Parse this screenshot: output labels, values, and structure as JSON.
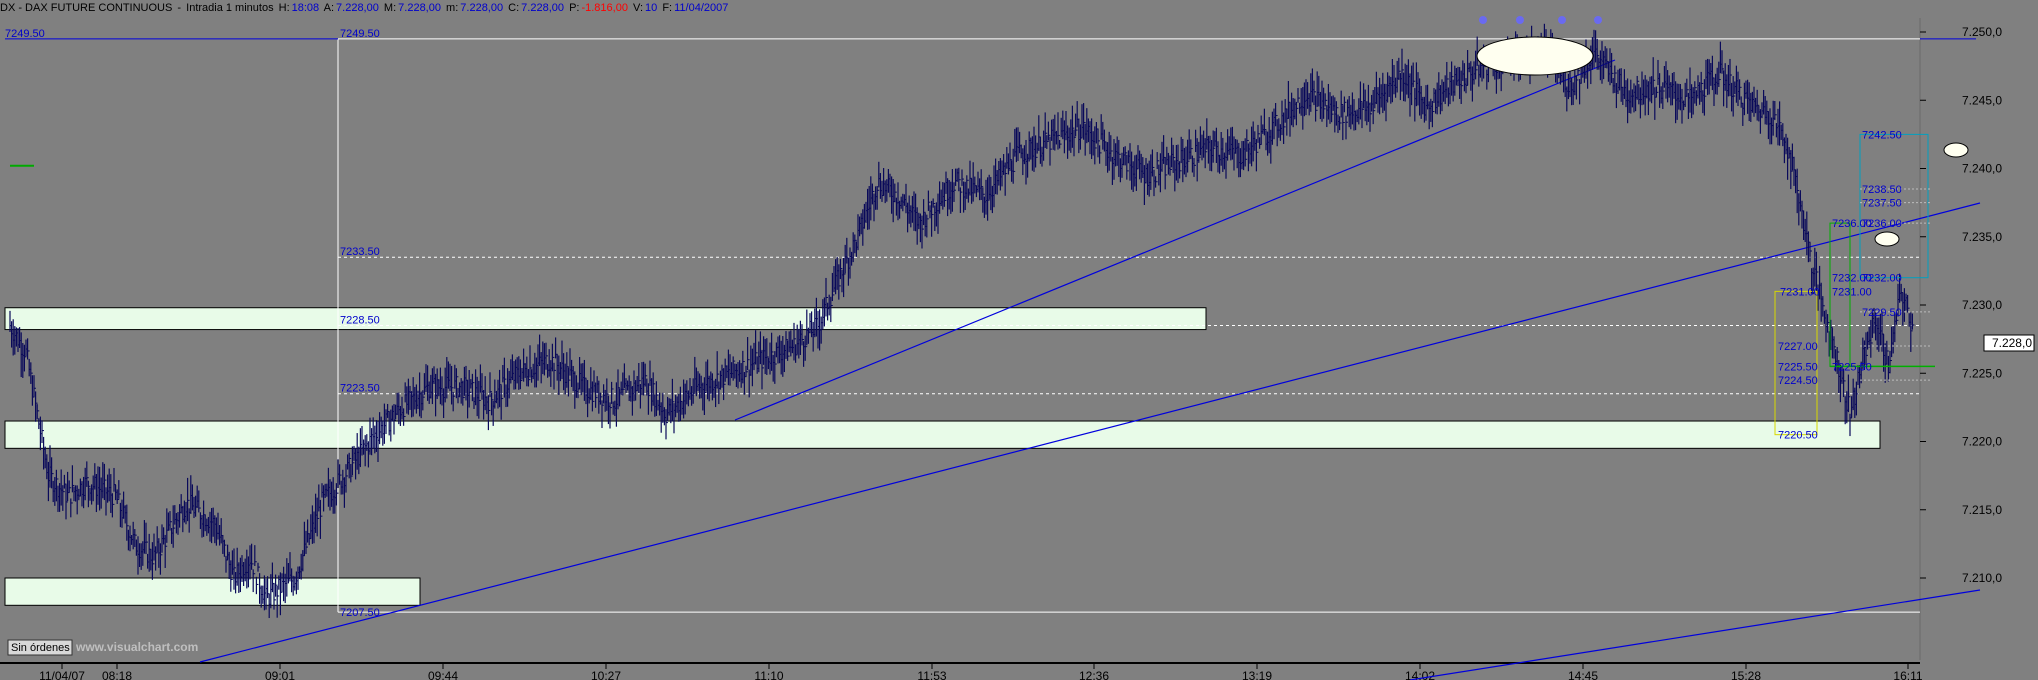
{
  "header": {
    "symbol": "DX - DAX FUTURE CONTINUOUS",
    "interval": "Intradia 1 minutos",
    "h_label": "H:",
    "h_value": "18:08",
    "a_label": "A:",
    "a_value": "7.228,00",
    "m_label": "M:",
    "m_value": "7.228,00",
    "mi_label": "m:",
    "mi_value": "7.228,00",
    "c_label": "C:",
    "c_value": "7.228,00",
    "p_label": "P:",
    "p_value": "-1.816,00",
    "v_label": "V:",
    "v_value": "10",
    "f_label": "F:",
    "f_value": "11/04/2007"
  },
  "watermark": "www.visualchart.com",
  "orders_button": "Sin órdenes",
  "colors": {
    "background": "#808080",
    "bars": "#0a0a5a",
    "trendline": "#0000dd",
    "zone_fill": "#e8fbe8",
    "level_lines": "#ffffff",
    "last_price_box": "#ffffff"
  },
  "chart_data": {
    "type": "ohlc",
    "interval": "1 minute",
    "date": "11/04/07",
    "y_ticks": [
      "7.250,0",
      "7.245,0",
      "7.240,0",
      "7.235,0",
      "7.230,0",
      "7.225,0",
      "7.220,0",
      "7.215,0",
      "7.210,0"
    ],
    "y_tick_values": [
      7250,
      7245,
      7240,
      7235,
      7230,
      7225,
      7220,
      7215,
      7210
    ],
    "x_ticks": [
      "11/04/07",
      "08:18",
      "09:01",
      "09:44",
      "10:27",
      "11:10",
      "11:53",
      "12:36",
      "13:19",
      "14:02",
      "14:45",
      "15:28",
      "16:11"
    ],
    "ylim": [
      7205.5,
      7251.4
    ],
    "last_price": "7.228,0",
    "level_labels": [
      {
        "text": "7249.50",
        "value": 7249.5
      },
      {
        "text": "7249.50",
        "value": 7249.5
      },
      {
        "text": "7233.50",
        "value": 7233.5
      },
      {
        "text": "7228.50",
        "value": 7228.5
      },
      {
        "text": "7223.50",
        "value": 7223.5
      },
      {
        "text": "7207.50",
        "value": 7207.5
      }
    ],
    "zones": [
      {
        "low": 7228.2,
        "high": 7229.8
      },
      {
        "low": 7219.5,
        "high": 7221.5
      },
      {
        "low": 7208.0,
        "high": 7210.0
      }
    ],
    "projection_labels": [
      {
        "text": "7242.50",
        "value": 7242.5
      },
      {
        "text": "7238.50",
        "value": 7238.5
      },
      {
        "text": "7237.50",
        "value": 7237.5
      },
      {
        "text": "7236.00",
        "value": 7236.0
      },
      {
        "text": "7236.00",
        "value": 7236.0
      },
      {
        "text": "7232.00",
        "value": 7232.0
      },
      {
        "text": "7232.00",
        "value": 7232.0
      },
      {
        "text": "7231.00",
        "value": 7231.0
      },
      {
        "text": "7231.00",
        "value": 7231.0
      },
      {
        "text": "7229.50",
        "value": 7229.5
      },
      {
        "text": "7227.00",
        "value": 7227.0
      },
      {
        "text": "7225.50",
        "value": 7225.5
      },
      {
        "text": "7225.50",
        "value": 7225.5
      },
      {
        "text": "7224.50",
        "value": 7224.5
      },
      {
        "text": "7220.50",
        "value": 7220.5
      }
    ],
    "price_path": [
      [
        0,
        7228.5
      ],
      [
        10,
        7226.5
      ],
      [
        24,
        7217.5
      ],
      [
        36,
        7216.0
      ],
      [
        48,
        7217.0
      ],
      [
        66,
        7216.0
      ],
      [
        78,
        7212.5
      ],
      [
        90,
        7211.5
      ],
      [
        110,
        7215.5
      ],
      [
        128,
        7214.0
      ],
      [
        140,
        7210.0
      ],
      [
        150,
        7211.5
      ],
      [
        160,
        7208.5
      ],
      [
        178,
        7210.0
      ],
      [
        195,
        7215.5
      ],
      [
        212,
        7218.0
      ],
      [
        228,
        7220.5
      ],
      [
        245,
        7222.5
      ],
      [
        262,
        7224.0
      ],
      [
        282,
        7224.0
      ],
      [
        300,
        7223.0
      ],
      [
        318,
        7225.0
      ],
      [
        338,
        7226.0
      ],
      [
        358,
        7224.0
      ],
      [
        378,
        7223.0
      ],
      [
        397,
        7224.5
      ],
      [
        410,
        7222.0
      ],
      [
        430,
        7224.0
      ],
      [
        450,
        7225.0
      ],
      [
        470,
        7226.0
      ],
      [
        490,
        7227.0
      ],
      [
        505,
        7228.5
      ],
      [
        518,
        7232.0
      ],
      [
        530,
        7235.0
      ],
      [
        542,
        7239.0
      ],
      [
        555,
        7238.0
      ],
      [
        568,
        7236.0
      ],
      [
        590,
        7239.0
      ],
      [
        610,
        7238.0
      ],
      [
        630,
        7241.0
      ],
      [
        650,
        7242.0
      ],
      [
        670,
        7243.0
      ],
      [
        690,
        7241.0
      ],
      [
        710,
        7239.5
      ],
      [
        730,
        7240.5
      ],
      [
        750,
        7241.5
      ],
      [
        770,
        7241.0
      ],
      [
        790,
        7243.0
      ],
      [
        810,
        7245.5
      ],
      [
        830,
        7244.0
      ],
      [
        850,
        7244.5
      ],
      [
        870,
        7247.0
      ],
      [
        885,
        7244.5
      ],
      [
        900,
        7246.0
      ],
      [
        920,
        7247.5
      ],
      [
        940,
        7248.0
      ],
      [
        960,
        7248.5
      ],
      [
        975,
        7246.0
      ],
      [
        990,
        7248.5
      ],
      [
        1010,
        7245.5
      ],
      [
        1030,
        7246.0
      ],
      [
        1050,
        7245.0
      ],
      [
        1068,
        7247.0
      ],
      [
        1080,
        7245.5
      ],
      [
        1090,
        7244.5
      ],
      [
        1100,
        7244.0
      ],
      [
        1110,
        7242.0
      ],
      [
        1118,
        7238.0
      ],
      [
        1126,
        7233.0
      ],
      [
        1134,
        7229.5
      ],
      [
        1142,
        7226.0
      ],
      [
        1150,
        7222.0
      ],
      [
        1158,
        7226.0
      ],
      [
        1166,
        7229.0
      ],
      [
        1174,
        7225.5
      ],
      [
        1182,
        7231.0
      ],
      [
        1190,
        7228.0
      ]
    ]
  }
}
